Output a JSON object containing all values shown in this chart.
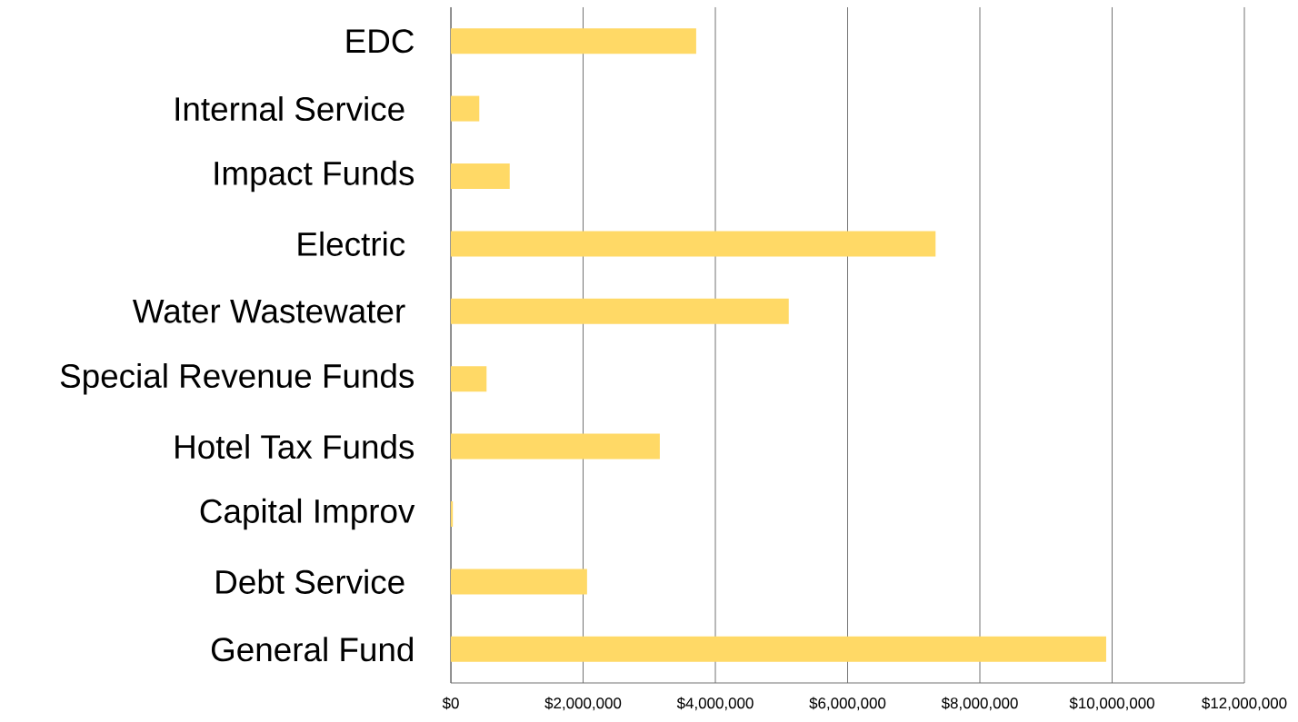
{
  "chart_data": {
    "type": "bar",
    "orientation": "horizontal",
    "categories": [
      "EDC",
      "Internal Service ",
      "Impact Funds",
      "Electric ",
      "Water Wastewater ",
      "Special Revenue Funds",
      "Hotel Tax Funds",
      "Capital Improv",
      "Debt Service ",
      "General Fund"
    ],
    "values": [
      3710000,
      430000,
      890000,
      7330000,
      5110000,
      540000,
      3160000,
      30000,
      2060000,
      9910000
    ],
    "color": "#ffd966",
    "xlim": [
      0,
      12000000
    ],
    "xticks": [
      {
        "value": 0,
        "label": "$0"
      },
      {
        "value": 2000000,
        "label": "$2,000,000"
      },
      {
        "value": 4000000,
        "label": "$4,000,000"
      },
      {
        "value": 6000000,
        "label": "$6,000,000"
      },
      {
        "value": 8000000,
        "label": "$8,000,000"
      },
      {
        "value": 10000000,
        "label": "$10,000,000"
      },
      {
        "value": 12000000,
        "label": "$12,000,000"
      }
    ],
    "grid": "x"
  }
}
